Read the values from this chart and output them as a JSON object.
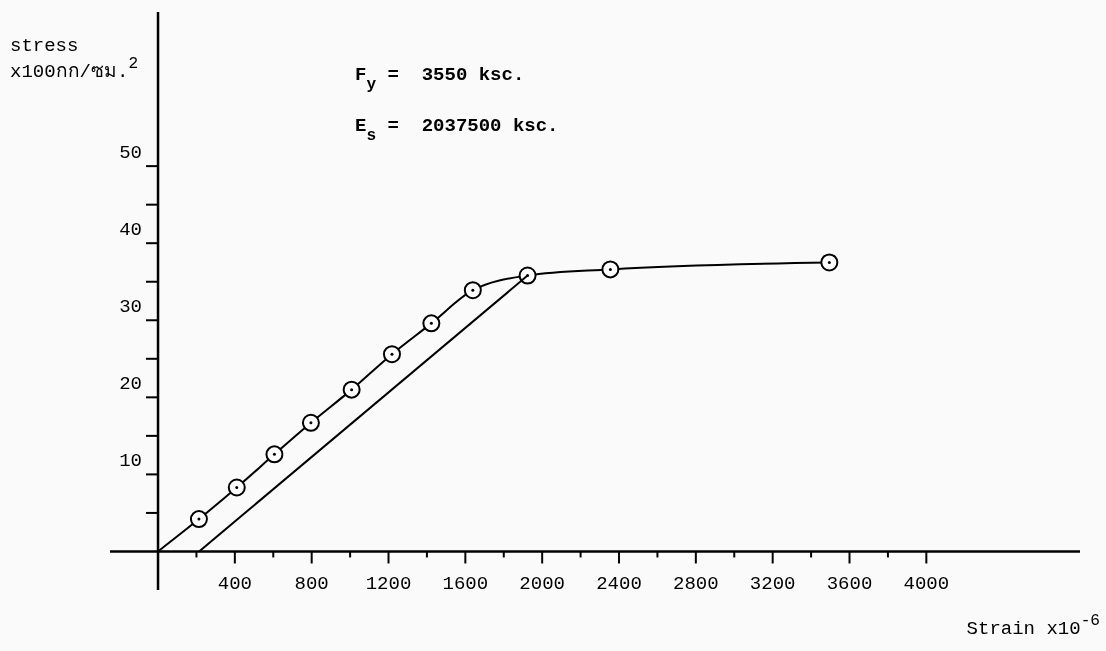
{
  "chart_data": {
    "type": "line",
    "xlabel": "Strain x10$^{-6}$",
    "ylabel": "stress x100กก/ซม.$^{2}$",
    "annotations": [
      "F$_{y}$ =  3550 ksc.",
      "E$_{s}$ =  2037500 ksc."
    ],
    "series": [
      {
        "color": "#000000",
        "marker": "none",
        "x": [
          0,
          213,
          410,
          606,
          796,
          1008,
          1218,
          1423,
          1639,
          1924,
          2355,
          3495
        ],
        "values": [
          0,
          4.2,
          8.3,
          12.6,
          16.7,
          21.0,
          25.6,
          29.6,
          33.9,
          35.8,
          36.6,
          37.5
        ]
      },
      {
        "type": "scatter",
        "color": "#000000",
        "marker": "circle",
        "x": [
          213,
          410,
          606,
          796,
          1008,
          1218,
          1423,
          1639,
          1924,
          2355,
          3495
        ],
        "values": [
          4.2,
          8.3,
          12.6,
          16.7,
          21.0,
          25.6,
          29.6,
          33.9,
          35.8,
          36.6,
          37.5
        ]
      },
      {
        "color": "#000000",
        "marker": "none",
        "x": [
          214,
          1924
        ],
        "values": [
          0,
          35.8
        ]
      }
    ],
    "xlim": [
      -250,
      4800
    ],
    "ylim": [
      -5,
      70
    ],
    "xticks": [
      {
        "value": 200,
        "label": null
      },
      400,
      {
        "value": 600,
        "label": null
      },
      800,
      {
        "value": 1000,
        "label": null
      },
      1200,
      {
        "value": 1400,
        "label": null
      },
      1600,
      {
        "value": 1800,
        "label": null
      },
      2000,
      {
        "value": 2200,
        "label": null
      },
      2400,
      {
        "value": 2600,
        "label": null
      },
      2800,
      {
        "value": 3000,
        "label": null
      },
      3200,
      {
        "value": 3400,
        "label": null
      },
      3600,
      {
        "value": 3800,
        "label": null
      },
      4000
    ],
    "yticks": [
      {
        "value": 5,
        "label": null
      },
      10,
      {
        "value": 15,
        "label": null
      },
      20,
      {
        "value": 25,
        "label": null
      },
      30,
      {
        "value": 35,
        "label": null
      },
      40,
      {
        "value": 45,
        "label": null
      },
      50
    ],
    "line_style": "solid"
  }
}
